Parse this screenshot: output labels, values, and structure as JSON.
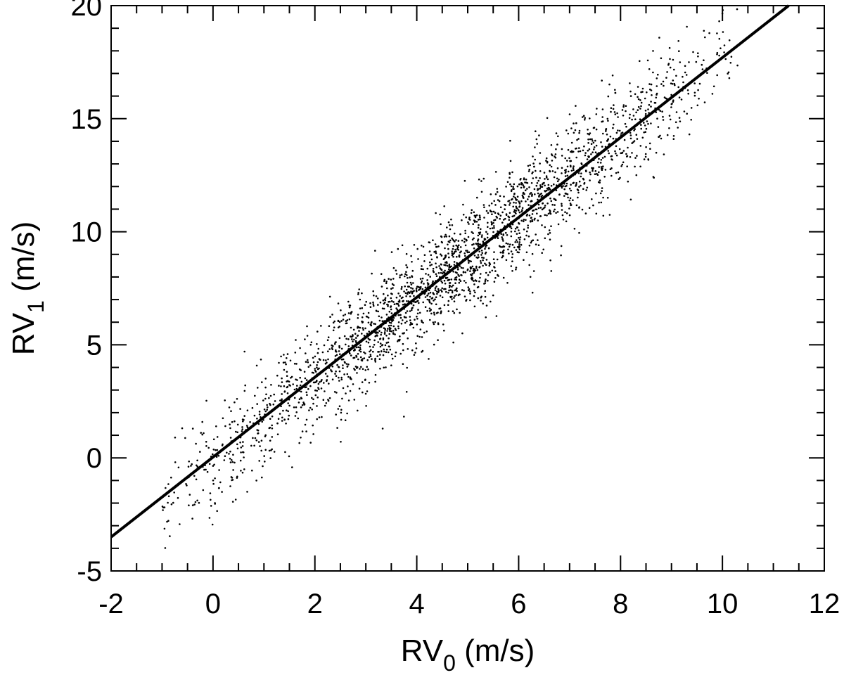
{
  "chart_data": {
    "type": "scatter",
    "title": "",
    "xlabel": {
      "main": "RV",
      "sub": "0",
      "unit": " (m/s)"
    },
    "ylabel": {
      "main": "RV",
      "sub": "1",
      "unit": " (m/s)"
    },
    "xlim": [
      -2,
      12
    ],
    "ylim": [
      -5,
      20
    ],
    "x_ticks": [
      "-2",
      "0",
      "2",
      "4",
      "6",
      "8",
      "10",
      "12"
    ],
    "y_ticks": [
      "-5",
      "0",
      "5",
      "10",
      "15",
      "20"
    ],
    "x_minor_step": 0.5,
    "y_minor_step": 1,
    "grid": false,
    "series": [
      {
        "type": "scatter",
        "count": 2500,
        "x_range": [
          -1.0,
          10.3
        ],
        "relation": {
          "slope": 1.78,
          "intercept": 0.0,
          "scatter_sd": 1.2
        },
        "marker_color": "#000000"
      },
      {
        "type": "line",
        "x": [
          -2,
          11.3
        ],
        "y": [
          -3.5,
          20.0
        ],
        "line_color": "#000000"
      }
    ]
  }
}
